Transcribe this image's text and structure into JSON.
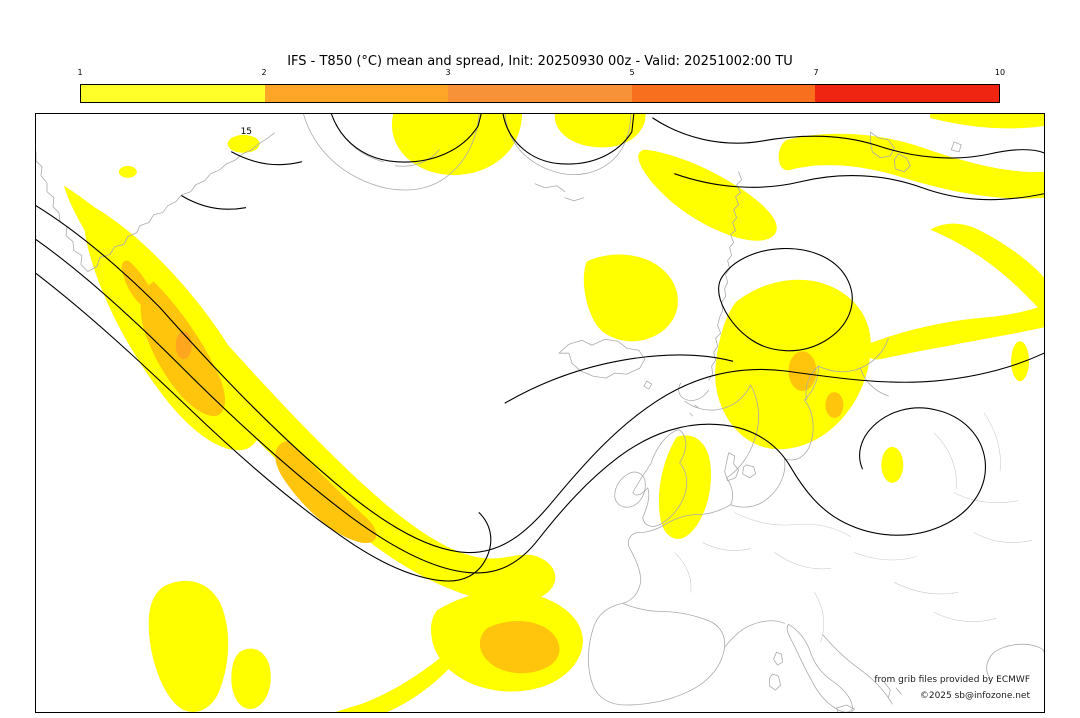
{
  "header": {
    "title": "IFS - T850 (°C) mean and spread, Init: 20250930 00z - Valid: 20251002:00 TU"
  },
  "colorbar": {
    "tick_labels": [
      "1",
      "2",
      "3",
      "5",
      "7",
      "10"
    ],
    "segments": [
      {
        "from": "1",
        "to": "2",
        "color": "#FFFF2A"
      },
      {
        "from": "2",
        "to": "3",
        "color": "#FFA629"
      },
      {
        "from": "3",
        "to": "5",
        "color": "#F79238"
      },
      {
        "from": "5",
        "to": "7",
        "color": "#F8701E"
      },
      {
        "from": "7",
        "to": "10",
        "color": "#EF2511"
      }
    ]
  },
  "map": {
    "contour_label": "15",
    "spread_fill_low": "#FFFF00",
    "spread_fill_mid": "#FFC40C",
    "spread_fill_high": "#FFA51E",
    "contour_color": "#000000",
    "coast_color": "#ABABAB",
    "background": "#FFFFFF"
  },
  "credits": {
    "line1": "from grib files provided by ECMWF",
    "line2": "©2025 sb@infozone.net"
  },
  "chart_data": {
    "type": "heatmap",
    "title": "IFS - T850 (°C) mean and spread",
    "model": "IFS",
    "variable": "T850 (°C)",
    "init": "20250930 00z",
    "valid": "20251002:00 TU",
    "legend_levels": [
      1,
      2,
      3,
      5,
      7,
      10
    ],
    "legend_colors": [
      "#FFFF2A",
      "#FFA629",
      "#F79238",
      "#F8701E",
      "#EF2511"
    ],
    "contour_labels_visible": [
      "15"
    ]
  }
}
